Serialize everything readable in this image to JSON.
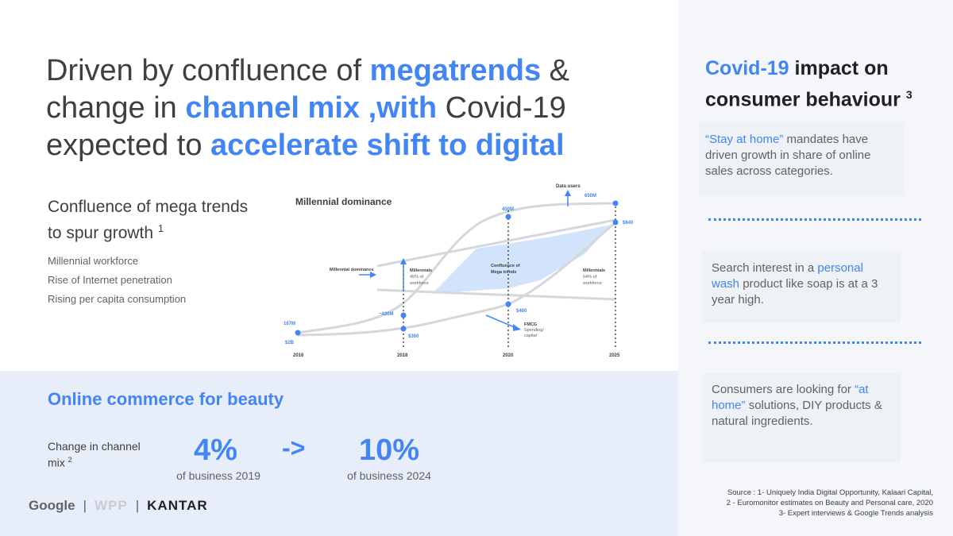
{
  "title": {
    "p1": "Driven by confluence of ",
    "h1": "megatrends",
    "p2": " & change in ",
    "h2": "channel mix ,with",
    "p3": " Covid-19 expected to ",
    "h3": "accelerate shift to digital"
  },
  "mega": {
    "heading": "Confluence of mega trends to spur growth",
    "footnote": "1",
    "items": [
      "Millennial workforce",
      "Rise of Internet penetration",
      "Rising per capita consumption"
    ]
  },
  "diagram": {
    "title": "Millennial dominance",
    "data_users": "Data users",
    "years": [
      "2016",
      "2018",
      "2020",
      "2025"
    ],
    "values": {
      "v1": "167M",
      "v2": "$2B",
      "v3": "~420M",
      "v4": "450M",
      "v5": "650M",
      "v6": "$640",
      "v7": "$400",
      "v8": "$360"
    },
    "millennial_dominance_label": "Millennial dominance",
    "millennials_left": "Millennials",
    "millennials_left_pct": "45% of",
    "millennials_left_work": "workforce",
    "millennials_right": "Millennials",
    "millennials_right_pct": "64% of",
    "millennials_right_work": "workforce",
    "confluence_1": "Confluence of",
    "confluence_2": "Mega trends",
    "fmcg_1": "FMCG",
    "fmcg_2": "Spending/",
    "fmcg_3": "capital"
  },
  "covid": {
    "heading_highlight": "Covid-19",
    "heading_rest": " impact on consumer behaviour",
    "footnote": "3",
    "card1": {
      "highlight": "“Stay at home”",
      "rest": " mandates have driven growth in share of online sales across categories."
    },
    "card2": {
      "pre": "Search interest in a ",
      "highlight": "personal wash",
      "rest": " product like soap is at a 3 year high."
    },
    "card3": {
      "pre": "Consumers are looking for ",
      "highlight": "“at home”",
      "rest": " solutions, DIY products & natural ingredients."
    }
  },
  "online": {
    "title": "Online commerce for beauty",
    "change_label": "Change in channel mix",
    "footnote": "2",
    "from_value": "4%",
    "from_sub": "of business 2019",
    "arrow": "->",
    "to_value": "10%",
    "to_sub": "of business 2024"
  },
  "logos": {
    "google": "Google",
    "sep1": "|",
    "wpp": "WPP",
    "sep2": "|",
    "kantar": "KANTAR"
  },
  "sources": {
    "line1": "Source :  1- Uniquely India Digital Opportunity, Kalaari Capital,",
    "line2": "2 - Euromonitor estimates on  Beauty and Personal care, 2020",
    "line3": "3- Expert interviews & Google Trends analysis"
  },
  "colors": {
    "accent": "#4285f4",
    "text": "#3c4043",
    "panel": "#f4f6f9",
    "band": "#e8eef9"
  }
}
